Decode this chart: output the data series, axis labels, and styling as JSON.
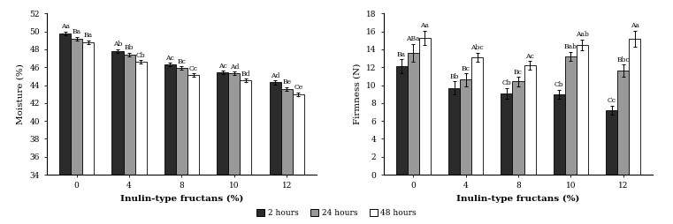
{
  "moisture": {
    "categories": [
      0,
      4,
      8,
      10,
      12
    ],
    "values_2h": [
      49.8,
      47.8,
      46.3,
      45.4,
      44.3
    ],
    "values_24h": [
      49.2,
      47.4,
      45.9,
      45.3,
      43.6
    ],
    "values_48h": [
      48.8,
      46.6,
      45.1,
      44.5,
      43.0
    ],
    "err_2h": [
      0.2,
      0.2,
      0.2,
      0.2,
      0.2
    ],
    "err_24h": [
      0.2,
      0.2,
      0.2,
      0.2,
      0.2
    ],
    "err_48h": [
      0.2,
      0.2,
      0.2,
      0.2,
      0.2
    ],
    "labels_2h": [
      "Aa",
      "Ab",
      "Ac",
      "Ac",
      "Ad"
    ],
    "labels_24h": [
      "Ba",
      "Bb",
      "Bc",
      "Ad",
      "Be"
    ],
    "labels_48h": [
      "Ba",
      "Cb",
      "Cc",
      "Bd",
      "Ce"
    ],
    "ylabel": "Moisture (%)",
    "ylim": [
      34,
      52
    ],
    "yticks": [
      34,
      36,
      38,
      40,
      42,
      44,
      46,
      48,
      50,
      52
    ],
    "xlabel": "Inulin-type fructans (%)"
  },
  "firmness": {
    "categories": [
      0,
      4,
      8,
      10,
      12
    ],
    "values_2h": [
      12.1,
      9.7,
      9.1,
      9.0,
      7.2
    ],
    "values_24h": [
      13.6,
      10.6,
      10.4,
      13.2,
      11.6
    ],
    "values_48h": [
      15.3,
      13.1,
      12.2,
      14.5,
      15.2
    ],
    "err_2h": [
      0.8,
      0.7,
      0.6,
      0.5,
      0.5
    ],
    "err_24h": [
      1.0,
      0.7,
      0.5,
      0.5,
      0.7
    ],
    "err_48h": [
      0.8,
      0.5,
      0.5,
      0.6,
      0.9
    ],
    "labels_2h": [
      "Ba",
      "Bb",
      "Cb",
      "Cb",
      "Cc"
    ],
    "labels_24h": [
      "ABa",
      "Bc",
      "Bc",
      "Bab",
      "Bbc"
    ],
    "labels_48h": [
      "Aa",
      "Abc",
      "Ac",
      "Aab",
      "Aa"
    ],
    "ylabel": "Firmness (N)",
    "ylim": [
      0,
      18
    ],
    "yticks": [
      0,
      2,
      4,
      6,
      8,
      10,
      12,
      14,
      16,
      18
    ],
    "xlabel": "Inulin-type fructans (%)"
  },
  "colors": {
    "2h": "#2b2b2b",
    "24h": "#999999",
    "48h": "#ffffff"
  },
  "bar_width": 0.22,
  "legend_labels": [
    "2 hours",
    "24 hours",
    "48 hours"
  ],
  "label_fontsize": 5.5,
  "axis_fontsize": 7.5,
  "tick_fontsize": 6.5
}
